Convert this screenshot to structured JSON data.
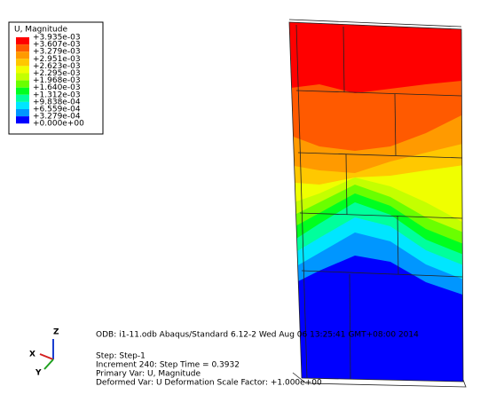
{
  "legend": {
    "title": "U, Magnitude",
    "labels": [
      "+3.935e-03",
      "+3.607e-03",
      "+3.279e-03",
      "+2.951e-03",
      "+2.623e-03",
      "+2.295e-03",
      "+1.968e-03",
      "+1.640e-03",
      "+1.312e-03",
      "+9.838e-04",
      "+6.559e-04",
      "+3.279e-04",
      "+0.000e+00"
    ],
    "colors": [
      "#ff0000",
      "#ff5a00",
      "#ff9a00",
      "#ffc800",
      "#f0ff00",
      "#c4ff00",
      "#6aff00",
      "#00ff20",
      "#00ff9c",
      "#00e6ff",
      "#0096ff",
      "#0000ff"
    ]
  },
  "info": {
    "odb": "ODB: i1-11.odb    Abaqus/Standard 6.12-2    Wed Aug 06 13:25:41 GMT+08:00 2014",
    "step": "Step: Step-1",
    "increment": "Increment    240: Step Time =    0.3932",
    "primary": "Primary Var: U, Magnitude",
    "deformed": "Deformed Var: U   Deformation Scale Factor: +1.000e+00"
  },
  "triad": {
    "z": "Z",
    "x": "X",
    "y": "Y"
  }
}
